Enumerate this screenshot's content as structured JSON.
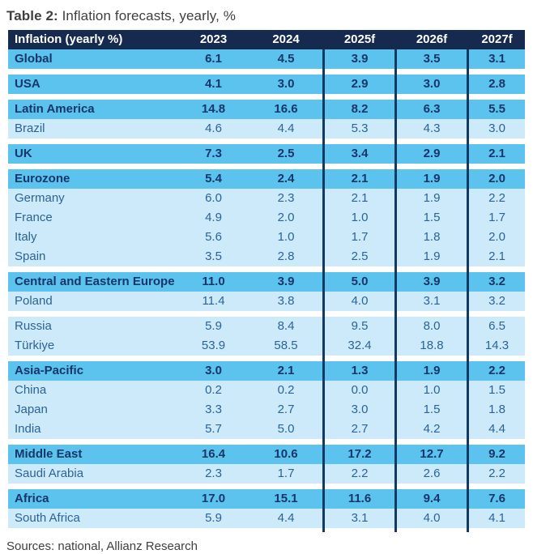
{
  "title": {
    "prefix": "Table 2:",
    "suffix": " Inflation forecasts, yearly, %"
  },
  "source": "Sources: national, Allianz Research",
  "colors": {
    "header_bg": "#152a4e",
    "header_text": "#ffffff",
    "region_bg": "#5bc3ee",
    "region_text": "#17366a",
    "light_bg": "#cdeafa",
    "light_text": "#2a6497",
    "line": "#123a63",
    "title_text": "#3f3f3f",
    "source_text": "#3f3f3f"
  },
  "chart_data": {
    "type": "table",
    "title": "Table 2: Inflation forecasts, yearly, %",
    "columns": [
      "Inflation (yearly %)",
      "2023",
      "2024",
      "2025f",
      "2026f",
      "2027f"
    ],
    "rows": [
      {
        "label": "Global",
        "style": "region",
        "values": [
          "6.1",
          "4.5",
          "3.9",
          "3.5",
          "3.1"
        ],
        "gap_after": true
      },
      {
        "label": "USA",
        "style": "region",
        "values": [
          "4.1",
          "3.0",
          "2.9",
          "3.0",
          "2.8"
        ],
        "gap_after": true
      },
      {
        "label": "Latin America",
        "style": "region",
        "values": [
          "14.8",
          "16.6",
          "8.2",
          "6.3",
          "5.5"
        ],
        "gap_after": false
      },
      {
        "label": "Brazil",
        "style": "light",
        "values": [
          "4.6",
          "4.4",
          "5.3",
          "4.3",
          "3.0"
        ],
        "gap_after": true
      },
      {
        "label": "UK",
        "style": "region",
        "values": [
          "7.3",
          "2.5",
          "3.4",
          "2.9",
          "2.1"
        ],
        "gap_after": true
      },
      {
        "label": "Eurozone",
        "style": "region",
        "values": [
          "5.4",
          "2.4",
          "2.1",
          "1.9",
          "2.0"
        ],
        "gap_after": false
      },
      {
        "label": "Germany",
        "style": "light",
        "values": [
          "6.0",
          "2.3",
          "2.1",
          "1.9",
          "2.2"
        ],
        "gap_after": false
      },
      {
        "label": "France",
        "style": "light",
        "values": [
          "4.9",
          "2.0",
          "1.0",
          "1.5",
          "1.7"
        ],
        "gap_after": false
      },
      {
        "label": "Italy",
        "style": "light",
        "values": [
          "5.6",
          "1.0",
          "1.7",
          "1.8",
          "2.0"
        ],
        "gap_after": false
      },
      {
        "label": "Spain",
        "style": "light",
        "values": [
          "3.5",
          "2.8",
          "2.5",
          "1.9",
          "2.1"
        ],
        "gap_after": true
      },
      {
        "label": "Central and Eastern Europe",
        "style": "region",
        "values": [
          "11.0",
          "3.9",
          "5.0",
          "3.9",
          "3.2"
        ],
        "gap_after": false
      },
      {
        "label": "Poland",
        "style": "light",
        "values": [
          "11.4",
          "3.8",
          "4.0",
          "3.1",
          "3.2"
        ],
        "gap_after": true
      },
      {
        "label": "Russia",
        "style": "light",
        "values": [
          "5.9",
          "8.4",
          "9.5",
          "8.0",
          "6.5"
        ],
        "gap_after": false
      },
      {
        "label": "Türkiye",
        "style": "light",
        "values": [
          "53.9",
          "58.5",
          "32.4",
          "18.8",
          "14.3"
        ],
        "gap_after": true
      },
      {
        "label": "Asia-Pacific",
        "style": "region",
        "values": [
          "3.0",
          "2.1",
          "1.3",
          "1.9",
          "2.2"
        ],
        "gap_after": false
      },
      {
        "label": "China",
        "style": "light",
        "values": [
          "0.2",
          "0.2",
          "0.0",
          "1.0",
          "1.5"
        ],
        "gap_after": false
      },
      {
        "label": "Japan",
        "style": "light",
        "values": [
          "3.3",
          "2.7",
          "3.0",
          "1.5",
          "1.8"
        ],
        "gap_after": false
      },
      {
        "label": "India",
        "style": "light",
        "values": [
          "5.7",
          "5.0",
          "2.7",
          "4.2",
          "4.4"
        ],
        "gap_after": true
      },
      {
        "label": "Middle East",
        "style": "region",
        "values": [
          "16.4",
          "10.6",
          "17.2",
          "12.7",
          "9.2"
        ],
        "gap_after": false
      },
      {
        "label": "Saudi Arabia",
        "style": "light",
        "values": [
          "2.3",
          "1.7",
          "2.2",
          "2.6",
          "2.2"
        ],
        "gap_after": true
      },
      {
        "label": "Africa",
        "style": "region",
        "values": [
          "17.0",
          "15.1",
          "11.6",
          "9.4",
          "7.6"
        ],
        "gap_after": false
      },
      {
        "label": "South Africa",
        "style": "light",
        "values": [
          "5.9",
          "4.4",
          "3.1",
          "4.0",
          "4.1"
        ],
        "gap_after": false
      }
    ]
  }
}
